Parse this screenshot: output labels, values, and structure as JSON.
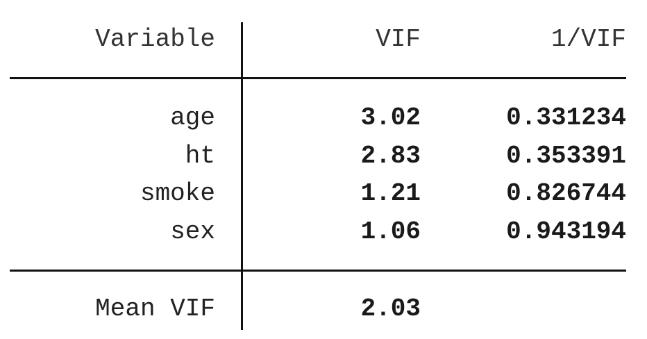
{
  "table": {
    "headers": {
      "variable": "Variable",
      "vif": "VIF",
      "inv_vif": "1/VIF"
    },
    "rows": [
      {
        "variable": "age",
        "vif": "3.02",
        "inv_vif": "0.331234"
      },
      {
        "variable": "ht",
        "vif": "2.83",
        "inv_vif": "0.353391"
      },
      {
        "variable": "smoke",
        "vif": "1.21",
        "inv_vif": "0.826744"
      },
      {
        "variable": "sex",
        "vif": "1.06",
        "inv_vif": "0.943194"
      }
    ],
    "footer": {
      "label": "Mean VIF",
      "vif": "2.03"
    }
  }
}
